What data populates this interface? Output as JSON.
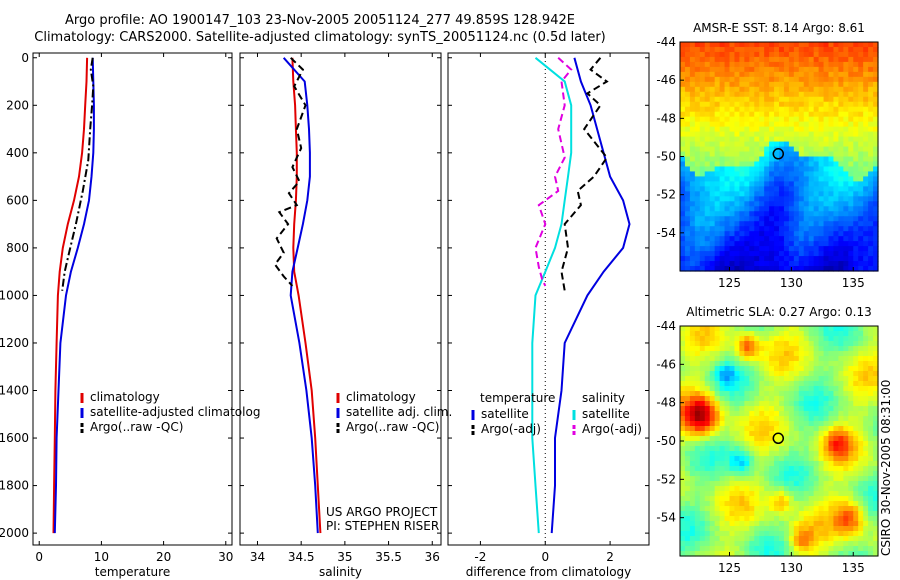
{
  "header": {
    "line1": "Argo profile: AO 1900147_103 23-Nov-2005 20051124_277 49.859S 128.942E",
    "line2": "Climatology: CARS2000. Satellite-adjusted climatology: synTS_20051124.nc (0.5d later)"
  },
  "colors": {
    "climatology": "#e00000",
    "satellite": "#0000e0",
    "argo": "#000000",
    "satellite_cyan": "#00e0e0",
    "argo_magenta": "#e000e0"
  },
  "chart_data": [
    {
      "type": "line",
      "xlabel": "temperature",
      "ylabel": "",
      "xlim": [
        -1,
        31
      ],
      "ylim": [
        2050,
        -20
      ],
      "xticks": [
        0,
        10,
        20,
        30
      ],
      "yticks": [
        0,
        200,
        400,
        600,
        800,
        1000,
        1200,
        1400,
        1600,
        1800,
        2000
      ],
      "legend_position": "lower-right",
      "series": [
        {
          "name": "climatology",
          "color": "#e00000",
          "style": "solid",
          "x": [
            7.7,
            7.6,
            7.4,
            7.2,
            6.9,
            6.4,
            5.6,
            4.6,
            3.8,
            3.3,
            3.0,
            2.8,
            2.6,
            2.5,
            2.4,
            2.3
          ],
          "y": [
            0,
            100,
            200,
            300,
            400,
            500,
            600,
            700,
            800,
            900,
            1000,
            1200,
            1400,
            1600,
            1800,
            2000
          ]
        },
        {
          "name": "satellite-adjusted climatology",
          "color": "#0000e0",
          "style": "solid",
          "x": [
            8.6,
            8.7,
            8.8,
            8.8,
            8.7,
            8.4,
            8.0,
            7.2,
            6.2,
            5.1,
            4.3,
            3.4,
            3.1,
            2.8,
            2.7,
            2.5
          ],
          "y": [
            0,
            100,
            200,
            300,
            400,
            500,
            600,
            700,
            800,
            900,
            1000,
            1200,
            1400,
            1600,
            1800,
            2000
          ]
        },
        {
          "name": "Argo(..raw -QC)",
          "color": "#000000",
          "style": "dashdot",
          "x": [
            8.6,
            8.3,
            8.7,
            8.5,
            8.2,
            7.9,
            7.0,
            5.9,
            4.8,
            4.1,
            3.7
          ],
          "y": [
            0,
            50,
            120,
            200,
            300,
            430,
            560,
            700,
            820,
            900,
            980
          ]
        }
      ]
    },
    {
      "type": "line",
      "xlabel": "salinity",
      "ylabel": "",
      "xlim": [
        33.8,
        36.1
      ],
      "ylim": [
        2050,
        -20
      ],
      "xticks": [
        34,
        34.5,
        35,
        35.5,
        36
      ],
      "yticks": [
        0,
        200,
        400,
        600,
        800,
        1000,
        1200,
        1400,
        1600,
        1800,
        2000
      ],
      "legend_position": "lower-right",
      "series": [
        {
          "name": "climatology",
          "color": "#e00000",
          "style": "solid",
          "x": [
            34.4,
            34.41,
            34.43,
            34.44,
            34.45,
            34.45,
            34.44,
            34.42,
            34.41,
            34.42,
            34.47,
            34.55,
            34.62,
            34.66,
            34.69,
            34.72
          ],
          "y": [
            0,
            100,
            200,
            300,
            400,
            500,
            600,
            700,
            800,
            900,
            1000,
            1200,
            1400,
            1600,
            1800,
            2000
          ]
        },
        {
          "name": "satellite adj. clim.",
          "color": "#0000e0",
          "style": "solid",
          "x": [
            34.3,
            34.54,
            34.57,
            34.59,
            34.6,
            34.6,
            34.57,
            34.52,
            34.46,
            34.4,
            34.38,
            34.48,
            34.56,
            34.62,
            34.66,
            34.69
          ],
          "y": [
            0,
            100,
            200,
            300,
            400,
            500,
            600,
            700,
            800,
            900,
            1000,
            1200,
            1400,
            1600,
            1800,
            2000
          ]
        },
        {
          "name": "Argo(..raw -QC)",
          "color": "#000000",
          "style": "dashed",
          "x": [
            34.38,
            34.52,
            34.42,
            34.55,
            34.45,
            34.5,
            34.4,
            34.48,
            34.36,
            34.45,
            34.25,
            34.35,
            34.22,
            34.3,
            34.2,
            34.3,
            34.4
          ],
          "y": [
            0,
            50,
            120,
            200,
            300,
            380,
            460,
            520,
            570,
            620,
            650,
            700,
            760,
            820,
            870,
            920,
            960
          ]
        }
      ]
    },
    {
      "type": "line",
      "xlabel": "difference from climatology",
      "ylabel": "",
      "xlim": [
        -3,
        3.2
      ],
      "ylim": [
        2050,
        -20
      ],
      "xticks": [
        -2,
        0,
        2
      ],
      "yticks": [
        0,
        200,
        400,
        600,
        800,
        1000,
        1200,
        1400,
        1600,
        1800,
        2000
      ],
      "legend_position": "lower",
      "legend_headers": [
        "temperature",
        "salinity"
      ],
      "series": [
        {
          "name": "satellite",
          "group": "temperature",
          "color": "#0000e0",
          "style": "solid",
          "x": [
            0.9,
            1.1,
            1.4,
            1.6,
            1.8,
            2.0,
            2.4,
            2.6,
            2.4,
            1.8,
            1.3,
            0.6,
            0.5,
            0.3,
            0.3,
            0.2
          ],
          "y": [
            0,
            100,
            200,
            300,
            400,
            500,
            600,
            700,
            800,
            900,
            1000,
            1200,
            1400,
            1600,
            1800,
            2000
          ]
        },
        {
          "name": "Argo(-adj)",
          "group": "temperature",
          "color": "#000000",
          "style": "dashed",
          "x": [
            1.7,
            1.4,
            1.9,
            1.3,
            1.7,
            1.2,
            1.9,
            1.5,
            1.0,
            1.1,
            0.6,
            0.7,
            0.5,
            0.6
          ],
          "y": [
            0,
            50,
            100,
            150,
            200,
            300,
            420,
            500,
            560,
            620,
            700,
            800,
            900,
            980
          ]
        },
        {
          "name": "satellite",
          "group": "salinity",
          "color": "#00e0e0",
          "style": "solid",
          "x": [
            -0.3,
            0.6,
            0.8,
            0.8,
            0.8,
            0.7,
            0.6,
            0.5,
            0.3,
            0.0,
            -0.3,
            -0.4,
            -0.4,
            -0.4,
            -0.3,
            -0.2
          ],
          "y": [
            0,
            100,
            200,
            300,
            400,
            500,
            600,
            700,
            800,
            900,
            1000,
            1200,
            1400,
            1600,
            1800,
            2000
          ]
        },
        {
          "name": "Argo(-adj)",
          "group": "salinity",
          "color": "#e000e0",
          "style": "dashed",
          "x": [
            0.4,
            0.8,
            0.5,
            0.6,
            0.4,
            0.6,
            0.3,
            0.4,
            -0.2,
            0.0,
            -0.3,
            -0.2,
            -0.1,
            0.0
          ],
          "y": [
            0,
            50,
            100,
            200,
            300,
            420,
            500,
            560,
            620,
            700,
            800,
            880,
            930,
            960
          ]
        }
      ]
    },
    {
      "type": "heatmap",
      "title": "AMSR-E SST: 8.14 Argo: 8.61",
      "xlim": [
        121,
        137
      ],
      "ylim": [
        -56,
        -44
      ],
      "xticks": [
        125,
        130,
        135
      ],
      "yticks": [
        -44,
        -46,
        -48,
        -50,
        -52,
        -54
      ],
      "marker": {
        "lon": 128.942,
        "lat": -49.859
      }
    },
    {
      "type": "heatmap",
      "title": "Altimetric SLA: 0.27 Argo: 0.13",
      "xlim": [
        121,
        137
      ],
      "ylim": [
        -56,
        -44
      ],
      "xticks": [
        125,
        130,
        135
      ],
      "yticks": [
        -44,
        -46,
        -48,
        -50,
        -52,
        -54
      ],
      "marker": {
        "lon": 128.942,
        "lat": -49.859
      }
    }
  ],
  "legends": {
    "panel1": [
      "climatology",
      "satellite-adjusted climatolog",
      "Argo(..raw -QC)"
    ],
    "panel2": [
      "climatology",
      "satellite adj. clim.",
      "Argo(..raw -QC)"
    ],
    "panel3_headers": [
      "temperature",
      "salinity"
    ],
    "panel3": [
      "satellite",
      "Argo(-adj)",
      "satellite",
      "Argo(-adj)"
    ]
  },
  "footer": {
    "project": "US ARGO PROJECT",
    "pi": "PI: STEPHEN RISER"
  },
  "side_label": "CSIRO 30-Nov-2005 08:31:00"
}
